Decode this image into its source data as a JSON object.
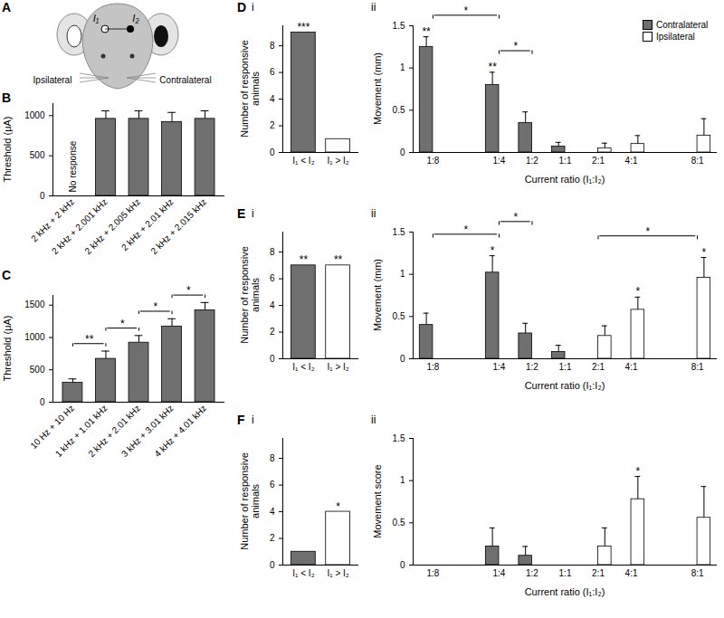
{
  "schematic": {
    "panel": "A",
    "electrodes": [
      "I₁",
      "I₂"
    ],
    "sides": [
      "Ipsilateral",
      "Contralateral"
    ]
  },
  "chart_data": [
    {
      "panel": "B",
      "type": "bar",
      "ylabel": "Threshold (μA)",
      "categories": [
        "2 kHz + 2 kHz",
        "2 kHz + 2.001 kHz",
        "2 kHz + 2.005 kHz",
        "2 kHz + 2.01 kHz",
        "2 kHz + 2.015 kHz"
      ],
      "values": [
        null,
        960,
        960,
        920,
        960
      ],
      "errors": [
        null,
        100,
        100,
        120,
        100
      ],
      "color": "#6f6f6f",
      "annotations": [
        {
          "category": "2 kHz + 2 kHz",
          "text": "No response"
        }
      ],
      "ylim": [
        0,
        1150
      ],
      "yticks": [
        0,
        500,
        1000
      ]
    },
    {
      "panel": "C",
      "type": "bar",
      "ylabel": "Threshold (μA)",
      "categories": [
        "10 Hz + 10 Hz",
        "1 kHz + 1.01 kHz",
        "2 kHz + 2.01 kHz",
        "3 kHz + 3.01 kHz",
        "4 kHz + 4.01 kHz"
      ],
      "values": [
        300,
        670,
        920,
        1170,
        1420
      ],
      "errors": [
        60,
        120,
        110,
        120,
        120
      ],
      "color": "#6f6f6f",
      "brackets": [
        {
          "from": "10 Hz + 10 Hz",
          "to": "1 kHz + 1.01 kHz",
          "label": "**"
        },
        {
          "from": "1 kHz + 1.01 kHz",
          "to": "2 kHz + 2.01 kHz",
          "label": "*"
        },
        {
          "from": "2 kHz + 2.01 kHz",
          "to": "3 kHz + 3.01 kHz",
          "label": "*"
        },
        {
          "from": "3 kHz + 3.01 kHz",
          "to": "4 kHz + 4.01 kHz",
          "label": "*"
        }
      ],
      "ylim": [
        0,
        1650
      ],
      "yticks": [
        0,
        500,
        1000,
        1500
      ]
    },
    {
      "panel": "D",
      "subpanel": "i",
      "type": "bar",
      "ylabel": "Number of responsive animals",
      "categories": [
        "I₁ < I₂",
        "I₁ > I₂"
      ],
      "values": [
        9,
        1
      ],
      "colors": [
        "#6f6f6f",
        "#ffffff"
      ],
      "significance": [
        "***",
        null
      ],
      "ylim": [
        0,
        9.5
      ],
      "yticks": [
        0,
        2,
        4,
        6,
        8
      ]
    },
    {
      "panel": "D",
      "subpanel": "ii",
      "type": "bar",
      "ylabel": "Movement (mm)",
      "xlabel": "Current ratio (I₁:I₂)",
      "categories": [
        "1:8",
        null,
        "1:4",
        "1:2",
        "1:1",
        "2:1",
        "4:1",
        null,
        "8:1"
      ],
      "series": [
        {
          "name": "Contralateral",
          "color": "#6f6f6f",
          "values": [
            1.25,
            null,
            0.8,
            0.35,
            0.07,
            0,
            0,
            null,
            0
          ],
          "errors": [
            0.12,
            null,
            0.15,
            0.13,
            0.05,
            0,
            0,
            null,
            0
          ],
          "significance": [
            "**",
            null,
            "**",
            null,
            null,
            null,
            null,
            null,
            null
          ]
        },
        {
          "name": "Ipsilateral",
          "color": "#ffffff",
          "values": [
            0,
            null,
            0,
            0,
            0,
            0.05,
            0.1,
            null,
            0.2
          ],
          "errors": [
            0,
            null,
            0,
            0,
            0,
            0.06,
            0.1,
            null,
            0.2
          ]
        }
      ],
      "brackets": [
        {
          "from": "1:8",
          "to": "1:4",
          "label": "*"
        },
        {
          "from": "1:4",
          "to": "1:2",
          "label": "*"
        }
      ],
      "legend": "top-right",
      "ylim": [
        0,
        1.5
      ],
      "yticks": [
        0,
        0.5,
        1,
        1.5
      ]
    },
    {
      "panel": "E",
      "subpanel": "i",
      "type": "bar",
      "ylabel": "Number of responsive animals",
      "categories": [
        "I₁ < I₂",
        "I₁ > I₂"
      ],
      "values": [
        7,
        7
      ],
      "colors": [
        "#6f6f6f",
        "#ffffff"
      ],
      "significance": [
        "**",
        "**"
      ],
      "ylim": [
        0,
        9.5
      ],
      "yticks": [
        0,
        2,
        4,
        6,
        8
      ]
    },
    {
      "panel": "E",
      "subpanel": "ii",
      "type": "bar",
      "ylabel": "Movement (mm)",
      "xlabel": "Current ratio (I₁:I₂)",
      "categories": [
        "1:8",
        null,
        "1:4",
        "1:2",
        "1:1",
        "2:1",
        "4:1",
        null,
        "8:1"
      ],
      "series": [
        {
          "color": "#6f6f6f",
          "values": [
            0.4,
            null,
            1.02,
            0.3,
            0.08,
            0,
            0,
            null,
            0
          ],
          "errors": [
            0.14,
            null,
            0.2,
            0.12,
            0.08,
            0,
            0,
            null,
            0
          ],
          "significance": [
            null,
            null,
            "*",
            null,
            null,
            null,
            null,
            null,
            null
          ]
        },
        {
          "color": "#ffffff",
          "values": [
            0,
            null,
            0,
            0,
            0,
            0.27,
            0.58,
            null,
            0.96
          ],
          "errors": [
            0,
            null,
            0,
            0,
            0,
            0.12,
            0.15,
            null,
            0.24
          ],
          "significance": [
            null,
            null,
            null,
            null,
            null,
            null,
            "*",
            null,
            "*"
          ]
        }
      ],
      "brackets": [
        {
          "from": "1:8",
          "to": "1:4",
          "label": "*"
        },
        {
          "from": "1:4",
          "to": "1:2",
          "label": "*"
        },
        {
          "from": "2:1",
          "to": "8:1",
          "label": "*"
        }
      ],
      "ylim": [
        0,
        1.5
      ],
      "yticks": [
        0,
        0.5,
        1,
        1.5
      ]
    },
    {
      "panel": "F",
      "subpanel": "i",
      "type": "bar",
      "ylabel": "Number of responsive animals",
      "categories": [
        "I₁ < I₂",
        "I₁ > I₂"
      ],
      "values": [
        1,
        4
      ],
      "colors": [
        "#6f6f6f",
        "#ffffff"
      ],
      "significance": [
        null,
        "*"
      ],
      "ylim": [
        0,
        9.5
      ],
      "yticks": [
        0,
        2,
        4,
        6,
        8
      ]
    },
    {
      "panel": "F",
      "subpanel": "ii",
      "type": "bar",
      "ylabel": "Movement score",
      "xlabel": "Current ratio (I₁:I₂)",
      "categories": [
        "1:8",
        null,
        "1:4",
        "1:2",
        "1:1",
        "2:1",
        "4:1",
        null,
        "8:1"
      ],
      "series": [
        {
          "color": "#6f6f6f",
          "values": [
            0,
            null,
            0.22,
            0.11,
            0,
            0,
            0,
            null,
            0
          ],
          "errors": [
            0,
            null,
            0.22,
            0.11,
            0,
            0,
            0,
            null,
            0
          ]
        },
        {
          "color": "#ffffff",
          "values": [
            0,
            null,
            0,
            0,
            0,
            0.22,
            0.78,
            null,
            0.56
          ],
          "errors": [
            0,
            null,
            0,
            0,
            0,
            0.22,
            0.27,
            null,
            0.37
          ],
          "significance": [
            null,
            null,
            null,
            null,
            null,
            null,
            "*",
            null,
            null
          ]
        }
      ],
      "ylim": [
        0,
        1.5
      ],
      "yticks": [
        0,
        0.5,
        1,
        1.5
      ]
    }
  ]
}
